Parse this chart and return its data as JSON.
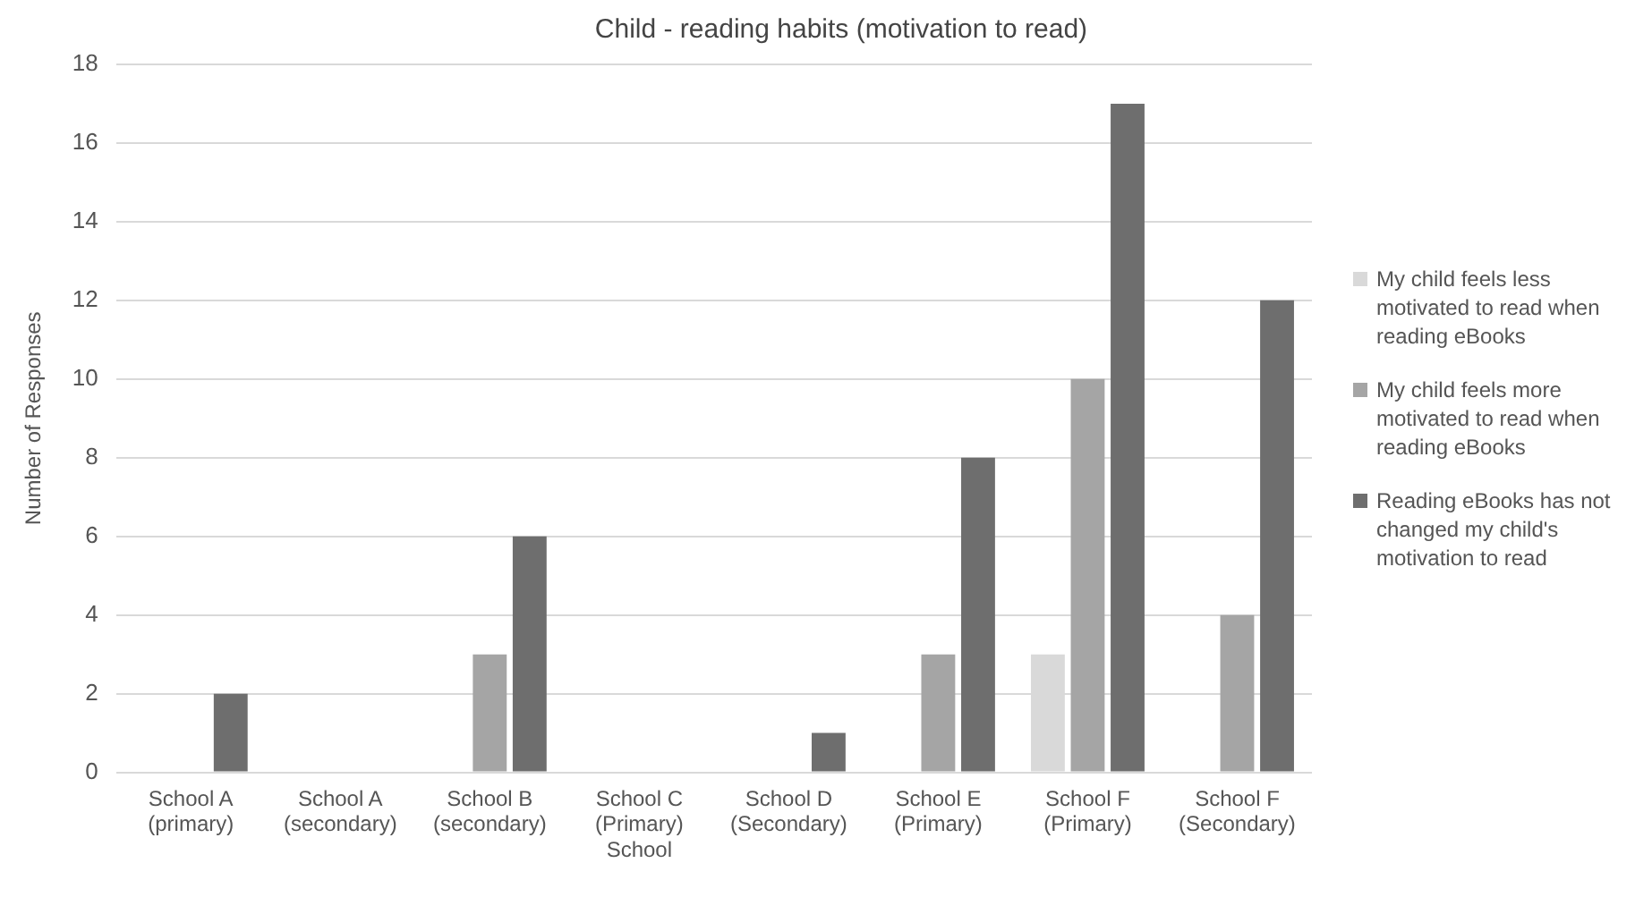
{
  "chart_data": {
    "type": "bar",
    "title": "Child - reading habits (motivation to read)",
    "ylabel": "Number of Responses",
    "categories": [
      "School A\n(primary)",
      "School A\n(secondary)",
      "School B\n(secondary)",
      "School C\n(Primary)\nSchool",
      "School D\n(Secondary)",
      "School E\n(Primary)",
      "School F\n(Primary)",
      "School F\n(Secondary)"
    ],
    "series": [
      {
        "name": "My child feels less motivated to read when reading eBooks",
        "color": "#d9d9d9",
        "values": [
          0,
          0,
          0,
          0,
          0,
          0,
          3,
          0
        ]
      },
      {
        "name": "My child feels more motivated to read when reading eBooks",
        "color": "#a5a5a5",
        "values": [
          0,
          0,
          3,
          0,
          0,
          3,
          10,
          4
        ]
      },
      {
        "name": "Reading eBooks has not changed my child's motivation to read",
        "color": "#6e6e6e",
        "values": [
          2,
          0,
          6,
          0,
          1,
          8,
          17,
          12
        ]
      }
    ],
    "ylim": [
      0,
      18
    ],
    "yticks": [
      0,
      2,
      4,
      6,
      8,
      10,
      12,
      14,
      16,
      18
    ],
    "grid": "y",
    "legend": "right"
  }
}
